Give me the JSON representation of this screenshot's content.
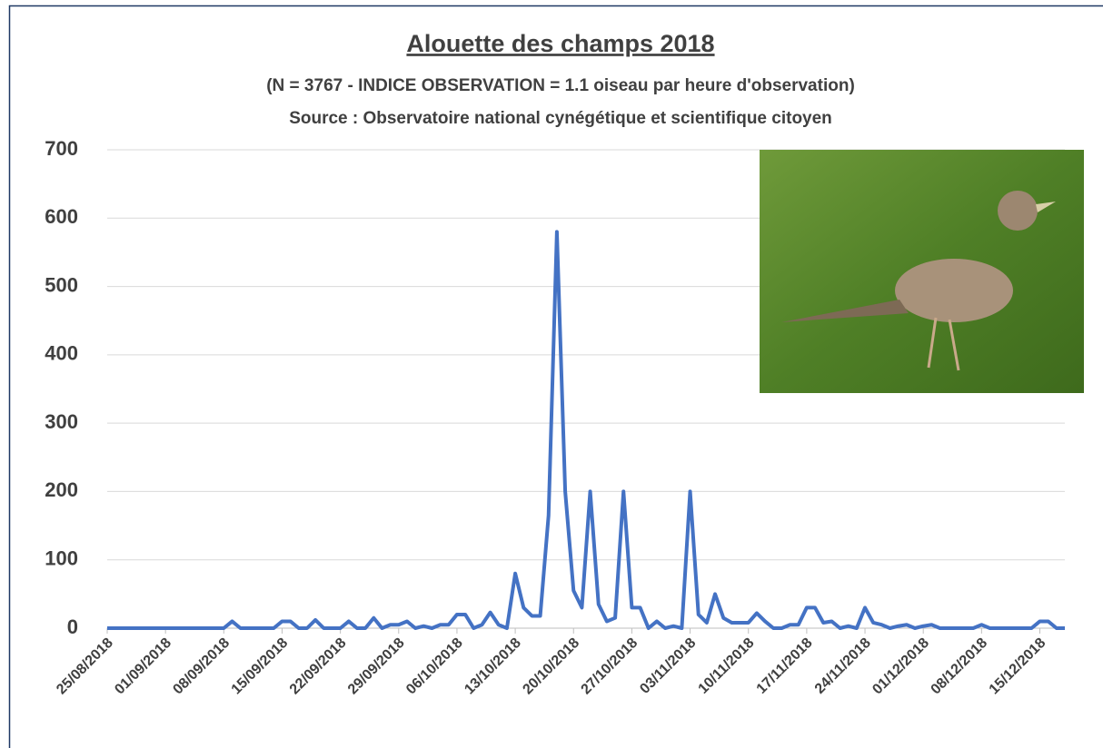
{
  "chart_data": {
    "type": "line",
    "title": "Alouette des champs 2018",
    "subtitle": "(N = 3767 - INDICE OBSERVATION = 1.1  oiseau par heure d'observation)",
    "source": "Source : Observatoire national cynégétique et scientifique citoyen",
    "x": [
      "25/08/2018",
      "26/08/2018",
      "27/08/2018",
      "28/08/2018",
      "29/08/2018",
      "30/08/2018",
      "31/08/2018",
      "01/09/2018",
      "02/09/2018",
      "03/09/2018",
      "04/09/2018",
      "05/09/2018",
      "06/09/2018",
      "07/09/2018",
      "08/09/2018",
      "09/09/2018",
      "10/09/2018",
      "11/09/2018",
      "12/09/2018",
      "13/09/2018",
      "14/09/2018",
      "15/09/2018",
      "16/09/2018",
      "17/09/2018",
      "18/09/2018",
      "19/09/2018",
      "20/09/2018",
      "21/09/2018",
      "22/09/2018",
      "23/09/2018",
      "24/09/2018",
      "25/09/2018",
      "26/09/2018",
      "27/09/2018",
      "28/09/2018",
      "29/09/2018",
      "30/09/2018",
      "01/10/2018",
      "02/10/2018",
      "03/10/2018",
      "04/10/2018",
      "05/10/2018",
      "06/10/2018",
      "07/10/2018",
      "08/10/2018",
      "09/10/2018",
      "10/10/2018",
      "11/10/2018",
      "12/10/2018",
      "13/10/2018",
      "14/10/2018",
      "15/10/2018",
      "16/10/2018",
      "17/10/2018",
      "18/10/2018",
      "19/10/2018",
      "20/10/2018",
      "21/10/2018",
      "22/10/2018",
      "23/10/2018",
      "24/10/2018",
      "25/10/2018",
      "26/10/2018",
      "27/10/2018",
      "28/10/2018",
      "29/10/2018",
      "30/10/2018",
      "31/10/2018",
      "01/11/2018",
      "02/11/2018",
      "03/11/2018",
      "04/11/2018",
      "05/11/2018",
      "06/11/2018",
      "07/11/2018",
      "08/11/2018",
      "09/11/2018",
      "10/11/2018",
      "11/11/2018",
      "12/11/2018",
      "13/11/2018",
      "14/11/2018",
      "15/11/2018",
      "16/11/2018",
      "17/11/2018",
      "18/11/2018",
      "19/11/2018",
      "20/11/2018",
      "21/11/2018",
      "22/11/2018",
      "23/11/2018",
      "24/11/2018",
      "25/11/2018",
      "26/11/2018",
      "27/11/2018",
      "28/11/2018",
      "29/11/2018",
      "30/11/2018",
      "01/12/2018",
      "02/12/2018",
      "03/12/2018",
      "04/12/2018",
      "05/12/2018",
      "06/12/2018",
      "07/12/2018",
      "08/12/2018",
      "09/12/2018",
      "10/12/2018",
      "11/12/2018",
      "12/12/2018",
      "13/12/2018",
      "14/12/2018",
      "15/12/2018",
      "16/12/2018",
      "17/12/2018",
      "18/12/2018"
    ],
    "series": [
      {
        "color": "#4472c4",
        "values": [
          0,
          0,
          0,
          0,
          0,
          0,
          0,
          0,
          0,
          0,
          0,
          0,
          0,
          0,
          0,
          10,
          0,
          0,
          0,
          0,
          0,
          10,
          10,
          0,
          0,
          12,
          0,
          0,
          0,
          10,
          0,
          0,
          15,
          0,
          5,
          5,
          10,
          0,
          3,
          0,
          5,
          5,
          20,
          20,
          0,
          5,
          23,
          5,
          0,
          80,
          30,
          18,
          18,
          165,
          580,
          200,
          55,
          30,
          200,
          35,
          10,
          15,
          200,
          30,
          30,
          0,
          10,
          0,
          3,
          0,
          200,
          20,
          8,
          50,
          15,
          8,
          8,
          8,
          22,
          10,
          0,
          0,
          5,
          5,
          30,
          30,
          8,
          10,
          0,
          3,
          0,
          30,
          8,
          5,
          0,
          3,
          5,
          0,
          3,
          5,
          0,
          0,
          0,
          0,
          0,
          5,
          0,
          0,
          0,
          0,
          0,
          0,
          10,
          10,
          0,
          0
        ]
      }
    ],
    "xlim": [
      "25/08/2018",
      "18/12/2018"
    ],
    "xticks": [
      "25/08/2018",
      "01/09/2018",
      "08/09/2018",
      "15/09/2018",
      "22/09/2018",
      "29/09/2018",
      "06/10/2018",
      "13/10/2018",
      "20/10/2018",
      "27/10/2018",
      "03/11/2018",
      "10/11/2018",
      "17/11/2018",
      "24/11/2018",
      "01/12/2018",
      "08/12/2018",
      "15/12/2018"
    ],
    "ylim": [
      0,
      700
    ],
    "yticks": [
      0,
      100,
      200,
      300,
      400,
      500,
      600,
      700
    ],
    "grid": true
  }
}
